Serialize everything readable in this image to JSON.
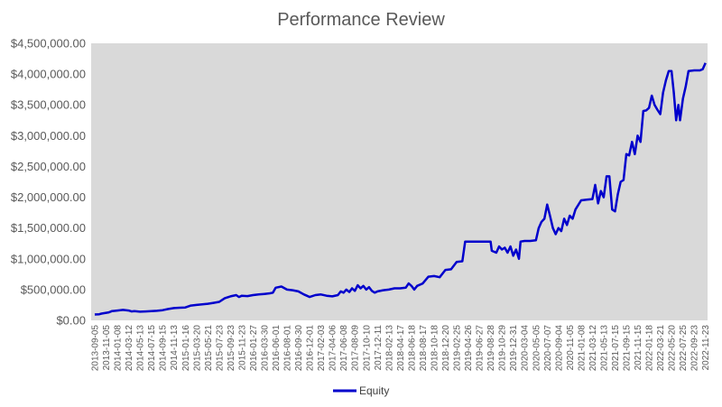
{
  "chart_data": {
    "type": "line",
    "title": "Performance Review",
    "xlabel": "",
    "ylabel": "",
    "ylim": [
      0,
      4500000
    ],
    "y_ticks": [
      {
        "value": 0,
        "label": "$0.00"
      },
      {
        "value": 500000,
        "label": "$500,000.00"
      },
      {
        "value": 1000000,
        "label": "$1,000,000.00"
      },
      {
        "value": 1500000,
        "label": "$1,500,000.00"
      },
      {
        "value": 2000000,
        "label": "$2,000,000.00"
      },
      {
        "value": 2500000,
        "label": "$2,500,000.00"
      },
      {
        "value": 3000000,
        "label": "$3,000,000.00"
      },
      {
        "value": 3500000,
        "label": "$3,500,000.00"
      },
      {
        "value": 4000000,
        "label": "$4,000,000.00"
      },
      {
        "value": 4500000,
        "label": "$4,500,000.00"
      }
    ],
    "x_tick_labels": [
      "2013-09-05",
      "2013-11-05",
      "2014-01-08",
      "2014-03-12",
      "2014-05-13",
      "2014-07-15",
      "2014-09-15",
      "2014-11-13",
      "2015-01-16",
      "2015-03-20",
      "2015-05-21",
      "2015-07-23",
      "2015-09-23",
      "2015-11-23",
      "2016-01-27",
      "2016-03-30",
      "2016-06-01",
      "2016-08-01",
      "2016-09-30",
      "2016-12-01",
      "2017-02-03",
      "2017-04-06",
      "2017-06-08",
      "2017-08-09",
      "2017-10-10",
      "2017-12-11",
      "2018-02-13",
      "2018-04-17",
      "2018-06-18",
      "2018-08-17",
      "2018-10-18",
      "2018-12-20",
      "2019-02-25",
      "2019-04-26",
      "2019-06-27",
      "2019-08-28",
      "2019-10-29",
      "2019-12-31",
      "2020-03-04",
      "2020-05-05",
      "2020-07-07",
      "2020-09-04",
      "2020-11-05",
      "2021-01-08",
      "2021-03-12",
      "2021-05-13",
      "2021-07-15",
      "2021-09-15",
      "2021-11-15",
      "2022-01-18",
      "2022-03-21",
      "2022-05-20",
      "2022-07-25",
      "2022-09-23",
      "2022-11-23"
    ],
    "grid": false,
    "legend_position": "bottom",
    "series": [
      {
        "name": "Equity",
        "color": "#0000cc",
        "points": [
          [
            0,
            95000
          ],
          [
            0.8,
            100000
          ],
          [
            1.2,
            110000
          ],
          [
            2.5,
            130000
          ],
          [
            3,
            150000
          ],
          [
            4,
            160000
          ],
          [
            5,
            170000
          ],
          [
            6,
            160000
          ],
          [
            6.5,
            145000
          ],
          [
            7,
            150000
          ],
          [
            8,
            140000
          ],
          [
            9,
            145000
          ],
          [
            10,
            150000
          ],
          [
            11,
            155000
          ],
          [
            12,
            165000
          ],
          [
            13,
            185000
          ],
          [
            14,
            200000
          ],
          [
            15,
            205000
          ],
          [
            16,
            210000
          ],
          [
            17,
            240000
          ],
          [
            18,
            250000
          ],
          [
            19,
            260000
          ],
          [
            20,
            270000
          ],
          [
            21,
            285000
          ],
          [
            22,
            300000
          ],
          [
            23,
            360000
          ],
          [
            24,
            390000
          ],
          [
            25,
            410000
          ],
          [
            25.5,
            380000
          ],
          [
            26,
            400000
          ],
          [
            27,
            395000
          ],
          [
            28,
            410000
          ],
          [
            29,
            420000
          ],
          [
            30,
            430000
          ],
          [
            31,
            440000
          ],
          [
            31.5,
            450000
          ],
          [
            32,
            530000
          ],
          [
            33,
            550000
          ],
          [
            34,
            500000
          ],
          [
            35,
            490000
          ],
          [
            36,
            470000
          ],
          [
            37,
            420000
          ],
          [
            37.5,
            400000
          ],
          [
            38,
            380000
          ],
          [
            39,
            410000
          ],
          [
            40,
            420000
          ],
          [
            41,
            400000
          ],
          [
            42,
            390000
          ],
          [
            43,
            410000
          ],
          [
            43.5,
            470000
          ],
          [
            44,
            450000
          ],
          [
            44.5,
            500000
          ],
          [
            45,
            460000
          ],
          [
            45.5,
            520000
          ],
          [
            46,
            480000
          ],
          [
            46.5,
            570000
          ],
          [
            47,
            520000
          ],
          [
            47.5,
            560000
          ],
          [
            48,
            500000
          ],
          [
            48.5,
            540000
          ],
          [
            49,
            480000
          ],
          [
            49.5,
            450000
          ],
          [
            50,
            470000
          ],
          [
            51,
            490000
          ],
          [
            52,
            500000
          ],
          [
            53,
            520000
          ],
          [
            54,
            520000
          ],
          [
            55,
            530000
          ],
          [
            55.5,
            600000
          ],
          [
            56,
            560000
          ],
          [
            56.5,
            500000
          ],
          [
            57,
            560000
          ],
          [
            58,
            600000
          ],
          [
            59,
            710000
          ],
          [
            60,
            720000
          ],
          [
            61,
            700000
          ],
          [
            62,
            820000
          ],
          [
            63,
            830000
          ],
          [
            64,
            950000
          ],
          [
            65,
            960000
          ],
          [
            65.5,
            1280000
          ],
          [
            66,
            1280000
          ],
          [
            68,
            1280000
          ],
          [
            69,
            1280000
          ],
          [
            70,
            1280000
          ],
          [
            70.2,
            1130000
          ],
          [
            71,
            1100000
          ],
          [
            71.5,
            1200000
          ],
          [
            72,
            1150000
          ],
          [
            72.5,
            1180000
          ],
          [
            73,
            1100000
          ],
          [
            73.5,
            1200000
          ],
          [
            74,
            1050000
          ],
          [
            74.5,
            1150000
          ],
          [
            75,
            1000000
          ],
          [
            75.3,
            1280000
          ],
          [
            76,
            1290000
          ],
          [
            77,
            1290000
          ],
          [
            78,
            1300000
          ],
          [
            78.5,
            1500000
          ],
          [
            79,
            1600000
          ],
          [
            79.5,
            1650000
          ],
          [
            80,
            1880000
          ],
          [
            80.5,
            1700000
          ],
          [
            81,
            1500000
          ],
          [
            81.5,
            1400000
          ],
          [
            82,
            1500000
          ],
          [
            82.5,
            1450000
          ],
          [
            83,
            1650000
          ],
          [
            83.5,
            1550000
          ],
          [
            84,
            1700000
          ],
          [
            84.5,
            1650000
          ],
          [
            85,
            1800000
          ],
          [
            86,
            1950000
          ],
          [
            87,
            1960000
          ],
          [
            88,
            1970000
          ],
          [
            88.5,
            2200000
          ],
          [
            89,
            1900000
          ],
          [
            89.5,
            2100000
          ],
          [
            90,
            2000000
          ],
          [
            90.5,
            2340000
          ],
          [
            91,
            2340000
          ],
          [
            91.5,
            1800000
          ],
          [
            92,
            1770000
          ],
          [
            92.5,
            2050000
          ],
          [
            93,
            2250000
          ],
          [
            93.5,
            2280000
          ],
          [
            94,
            2700000
          ],
          [
            94.5,
            2680000
          ],
          [
            95,
            2900000
          ],
          [
            95.5,
            2700000
          ],
          [
            96,
            3000000
          ],
          [
            96.5,
            2900000
          ],
          [
            97,
            3400000
          ],
          [
            97.5,
            3410000
          ],
          [
            98,
            3450000
          ],
          [
            98.5,
            3650000
          ],
          [
            99,
            3500000
          ],
          [
            99.5,
            3420000
          ],
          [
            100,
            3350000
          ],
          [
            100.5,
            3700000
          ],
          [
            101,
            3900000
          ],
          [
            101.5,
            4050000
          ],
          [
            102,
            4050000
          ],
          [
            102.4,
            3700000
          ],
          [
            102.8,
            3250000
          ],
          [
            103.2,
            3500000
          ],
          [
            103.5,
            3250000
          ],
          [
            104,
            3600000
          ],
          [
            104.5,
            3800000
          ],
          [
            105,
            4050000
          ],
          [
            106,
            4060000
          ],
          [
            107,
            4060000
          ],
          [
            107.5,
            4080000
          ],
          [
            108,
            4180000
          ]
        ]
      }
    ]
  }
}
